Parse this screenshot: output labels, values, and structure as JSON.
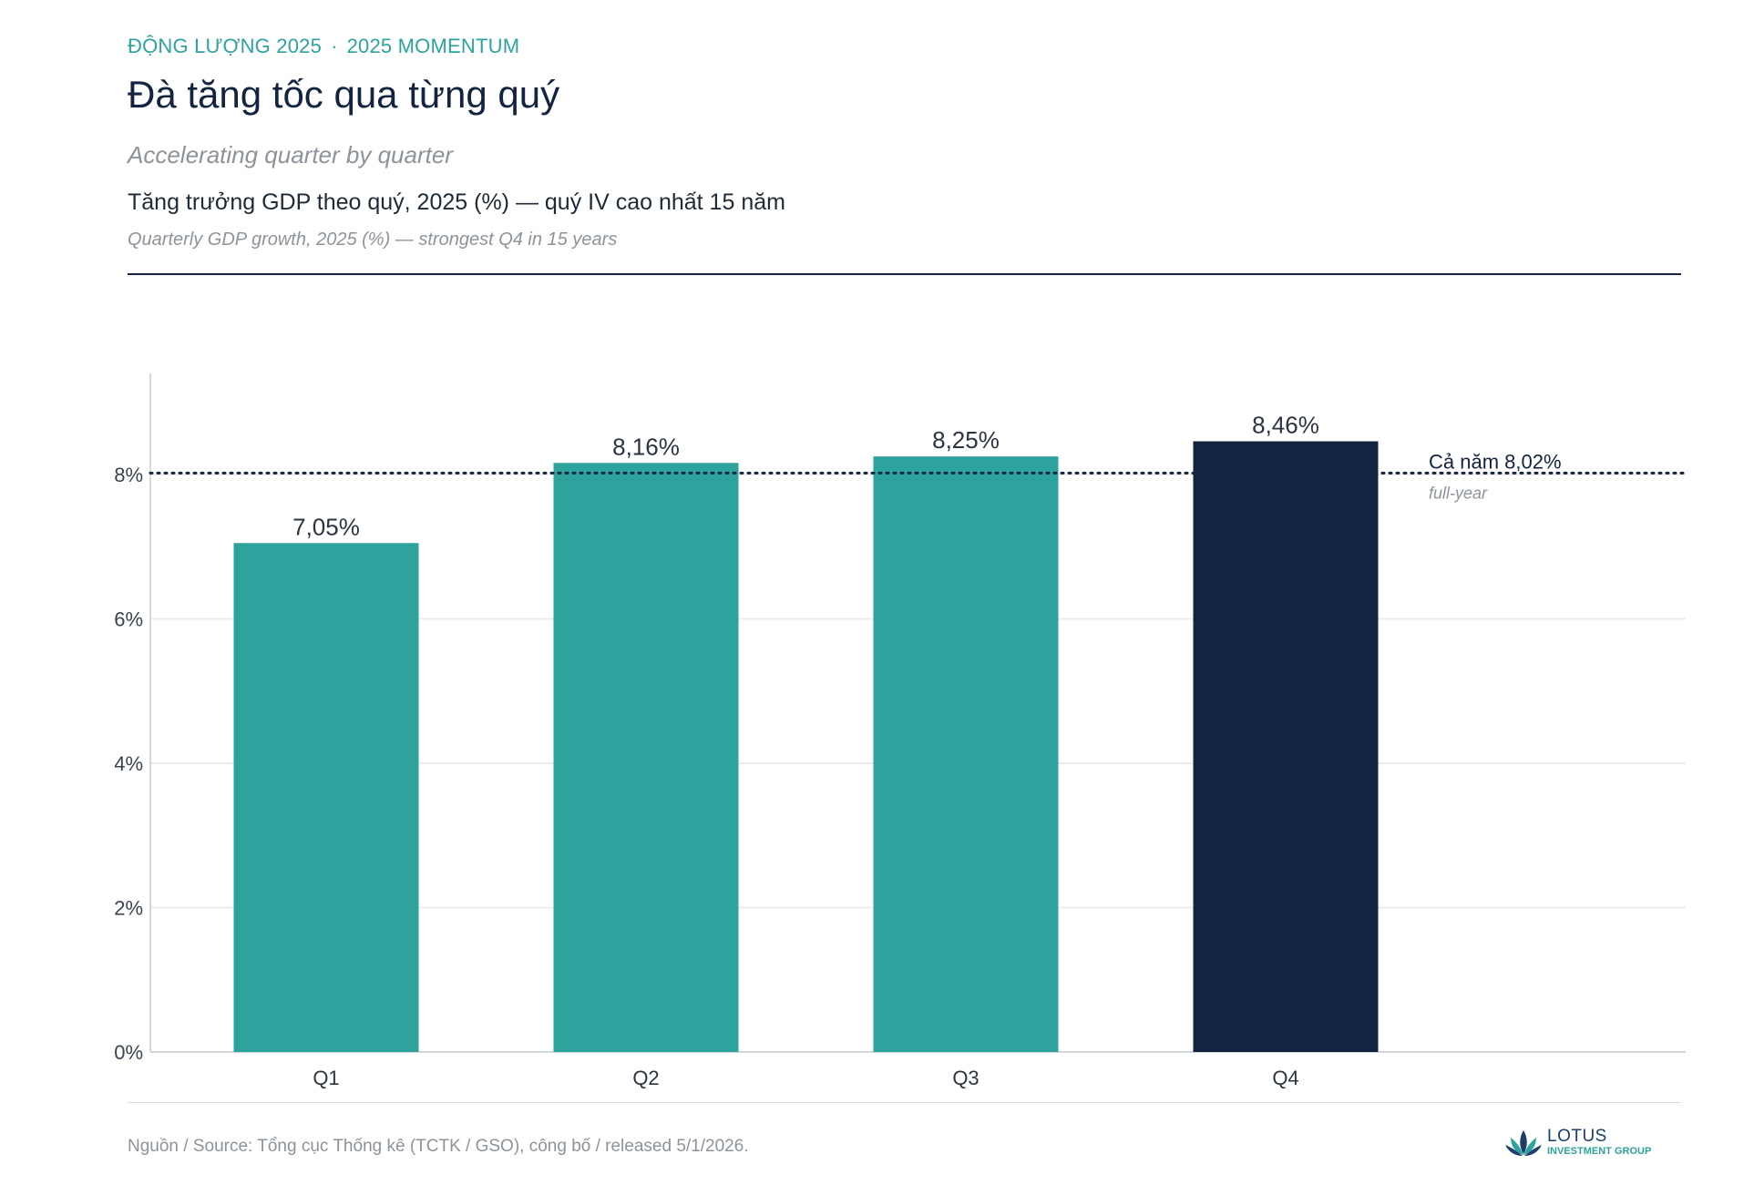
{
  "header": {
    "eyebrow_vi": "ĐỘNG LƯỢNG 2025",
    "eyebrow_sep": "·",
    "eyebrow_en": "2025 MOMENTUM",
    "title": "Đà tăng tốc qua từng quý",
    "subtitle_en": "Accelerating quarter by quarter",
    "caption_vi": "Tăng trưởng GDP theo quý, 2025 (%) — quý IV cao nhất 15 năm",
    "caption_en": "Quarterly GDP growth, 2025 (%) — strongest Q4 in 15 years"
  },
  "footer": {
    "source": "Nguồn / Source: Tổng cục Thống kê (TCTK / GSO), công bố / released 5/1/2026.",
    "logo_word": "LOTUS",
    "logo_sub": "INVESTMENT GROUP"
  },
  "colors": {
    "accent": "#2ea39e",
    "highlight": "#12243f",
    "grid": "#ececec",
    "muted": "#8d939a"
  },
  "chart_data": {
    "type": "bar",
    "categories": [
      "Q1",
      "Q2",
      "Q3",
      "Q4"
    ],
    "values": [
      7.05,
      8.16,
      8.25,
      8.46
    ],
    "value_labels": [
      "7,05%",
      "8,16%",
      "8,25%",
      "8,46%"
    ],
    "highlight_index": 3,
    "ylim": [
      0,
      9.4
    ],
    "yticks": [
      0,
      2,
      4,
      6,
      8
    ],
    "ytick_labels": [
      "0%",
      "2%",
      "4%",
      "6%",
      "8%"
    ],
    "grid": true,
    "reference_line": {
      "value": 8.02,
      "style": "dotted",
      "label": "Cả năm 8,02%",
      "sublabel": "full-year"
    }
  }
}
